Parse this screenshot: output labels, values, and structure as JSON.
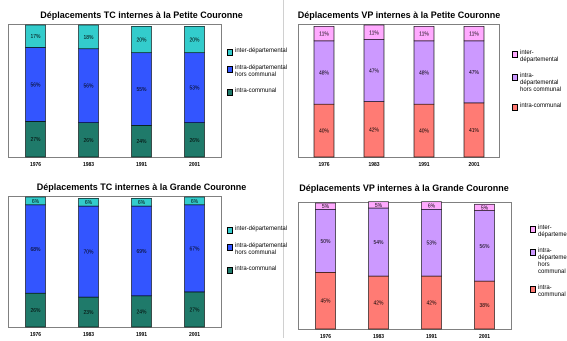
{
  "chart_data": [
    {
      "id": "tc-pc",
      "type": "bar",
      "stacked": true,
      "title": "Déplacements TC internes à la Petite Couronne",
      "categories": [
        "1976",
        "1983",
        "1991",
        "2001"
      ],
      "ylim": [
        0,
        100
      ],
      "series": [
        {
          "name": "intra-communal",
          "color": "#1f7a6a",
          "values": [
            27,
            26,
            24,
            26
          ]
        },
        {
          "name": "intra-départemental hors communal",
          "color": "#3355ff",
          "values": [
            56,
            56,
            55,
            53
          ]
        },
        {
          "name": "inter-départemental",
          "color": "#33cccc",
          "values": [
            17,
            18,
            20,
            20
          ]
        }
      ],
      "legend": [
        "inter-départemental",
        "intra-départemental hors communal",
        "intra-communal"
      ]
    },
    {
      "id": "vp-pc",
      "type": "bar",
      "stacked": true,
      "title": "Déplacements VP internes à la Petite Couronne",
      "categories": [
        "1976",
        "1983",
        "1991",
        "2001"
      ],
      "ylim": [
        0,
        100
      ],
      "series": [
        {
          "name": "intra-communal",
          "color": "#ff7b74",
          "values": [
            40,
            42,
            40,
            41
          ]
        },
        {
          "name": "intra-départemental hors communal",
          "color": "#cc99ff",
          "values": [
            48,
            47,
            48,
            47
          ]
        },
        {
          "name": "inter-départemental",
          "color": "#ffaaff",
          "values": [
            11,
            11,
            11,
            11
          ]
        }
      ],
      "legend": [
        "inter-\ndépartemental",
        "intra-\ndépartemental\nhors communal",
        "intra-communal"
      ]
    },
    {
      "id": "tc-gc",
      "type": "bar",
      "stacked": true,
      "title": "Déplacements TC internes à la Grande Couronne",
      "categories": [
        "1976",
        "1983",
        "1991",
        "2001"
      ],
      "ylim": [
        0,
        100
      ],
      "series": [
        {
          "name": "intra-communal",
          "color": "#1f7a6a",
          "values": [
            26,
            23,
            24,
            27
          ]
        },
        {
          "name": "intra-départemental hors communal",
          "color": "#3355ff",
          "values": [
            68,
            70,
            69,
            67
          ]
        },
        {
          "name": "inter-départemental",
          "color": "#33cccc",
          "values": [
            6,
            6,
            6,
            6
          ]
        }
      ],
      "legend": [
        "inter-départemental",
        "intra-départemental\nhors communal",
        "intra-communal"
      ]
    },
    {
      "id": "vp-gc",
      "type": "bar",
      "stacked": true,
      "title": "Déplacements VP internes à la Grande Couronne",
      "categories": [
        "1976",
        "1983",
        "1991",
        "2001"
      ],
      "ylim": [
        0,
        100
      ],
      "series": [
        {
          "name": "intra-communal",
          "color": "#ff7b74",
          "values": [
            45,
            42,
            42,
            38
          ]
        },
        {
          "name": "intra-départemental hors communal",
          "color": "#cc99ff",
          "values": [
            50,
            54,
            53,
            56
          ]
        },
        {
          "name": "inter-départemental",
          "color": "#ffaaff",
          "values": [
            5,
            5,
            6,
            5
          ]
        }
      ],
      "legend": [
        "inter-\ndépartemental",
        "intra-\ndépartemental\nhors communal",
        "intra-\ncommunal"
      ]
    }
  ]
}
